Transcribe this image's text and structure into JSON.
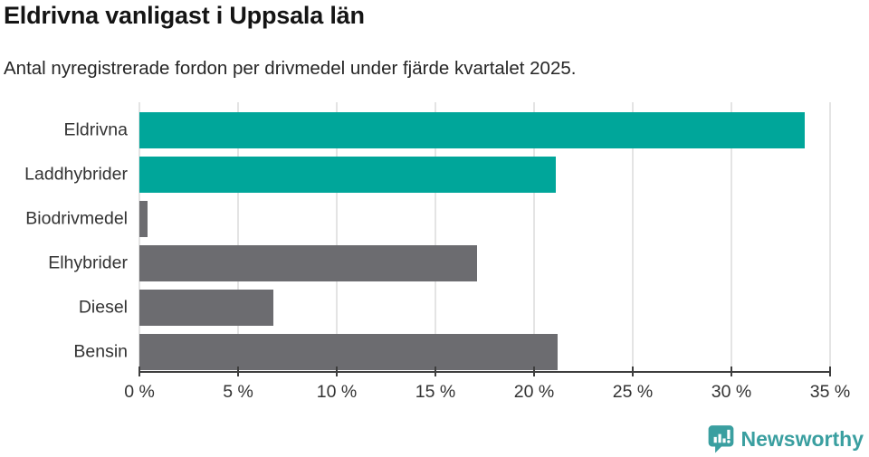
{
  "title": "Eldrivna vanligast i Uppsala län",
  "subtitle": "Antal nyregistrerade fordon per drivmedel under fjärde kvartalet 2025.",
  "chart_data": {
    "type": "bar",
    "orientation": "horizontal",
    "title": "Eldrivna vanligast i Uppsala län",
    "subtitle": "Antal nyregistrerade fordon per drivmedel under fjärde kvartalet 2025.",
    "categories": [
      "Eldrivna",
      "Laddhybrider",
      "Biodrivmedel",
      "Elhybrider",
      "Diesel",
      "Bensin"
    ],
    "values": [
      33.7,
      21.1,
      0.4,
      17.1,
      6.8,
      21.2
    ],
    "unit": "%",
    "xlabel": "",
    "ylabel": "",
    "xlim": [
      0,
      35
    ],
    "xticks": [
      0,
      5,
      10,
      15,
      20,
      25,
      30,
      35
    ],
    "xtick_labels": [
      "0 %",
      "5 %",
      "10 %",
      "15 %",
      "20 %",
      "25 %",
      "30 %",
      "35 %"
    ],
    "grid": true,
    "legend": false,
    "bar_colors": [
      "#00a69a",
      "#00a69a",
      "#6c6c70",
      "#6c6c70",
      "#6c6c70",
      "#6c6c70"
    ]
  },
  "colors": {
    "accent_teal": "#00a69a",
    "neutral_gray": "#6c6c70",
    "grid": "#e4e4e4",
    "axis": "#3e3e3e",
    "label_text": "#333333",
    "title_text": "#141414",
    "brand_teal": "#3a9fa0",
    "background": "#ffffff"
  },
  "footer": {
    "brand_name": "Newsworthy"
  }
}
